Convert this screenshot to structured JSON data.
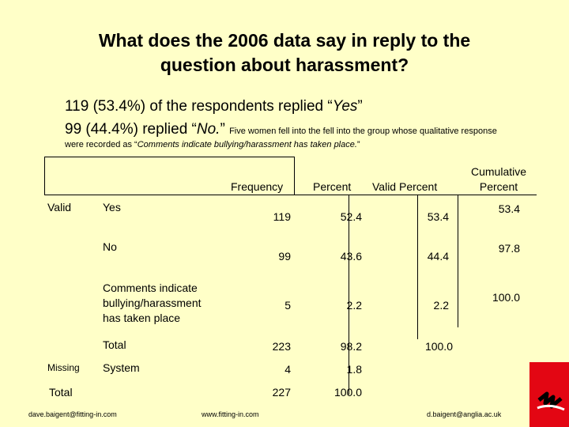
{
  "title_line1": "What does the 2006 data say in reply to the",
  "title_line2": "question about harassment?",
  "line1_pre": "119 (53.4%) of the respondents replied “",
  "line1_em": "Yes",
  "line1_post": "”",
  "line2_pre": "99 (44.4%) replied “",
  "line2_em": "No.",
  "line2_post": "” ",
  "line2_small": "Five women fell into the fell into the group whose qualitative response",
  "note_pre": "were recorded as “",
  "note_em": "Comments indicate bullying/harassment has taken place.",
  "note_post": "”",
  "table": {
    "headers": {
      "frequency": "Frequency",
      "percent": "Percent",
      "valid_percent": "Valid Percent",
      "cumulative_1": "Cumulative",
      "cumulative_2": "Percent"
    },
    "group_valid": "Valid",
    "group_missing": "Missing",
    "total_label": "Total",
    "rows": [
      {
        "label": "Yes",
        "frequency": "119",
        "percent": "52.4",
        "valid_percent": "53.4",
        "cumulative": "53.4"
      },
      {
        "label": "No",
        "frequency": "99",
        "percent": "43.6",
        "valid_percent": "44.4",
        "cumulative": "97.8"
      },
      {
        "label_1": "Comments indicate",
        "label_2": "bullying/harassment",
        "label_3": "has taken place",
        "frequency": "5",
        "percent": "2.2",
        "valid_percent": "2.2",
        "cumulative": "100.0"
      },
      {
        "label": "Total",
        "frequency": "223",
        "percent": "98.2",
        "valid_percent": "100.0"
      },
      {
        "label": "System",
        "frequency": "4",
        "percent": "1.8"
      },
      {
        "frequency": "227",
        "percent": "100.0"
      }
    ]
  },
  "footer": {
    "left": "dave.baigent@fitting-in.com",
    "center": "www.fitting-in.com",
    "right": "d.baigent@anglia.ac.uk"
  },
  "colors": {
    "background": "#ffffc8",
    "logo_red": "#e30613"
  }
}
